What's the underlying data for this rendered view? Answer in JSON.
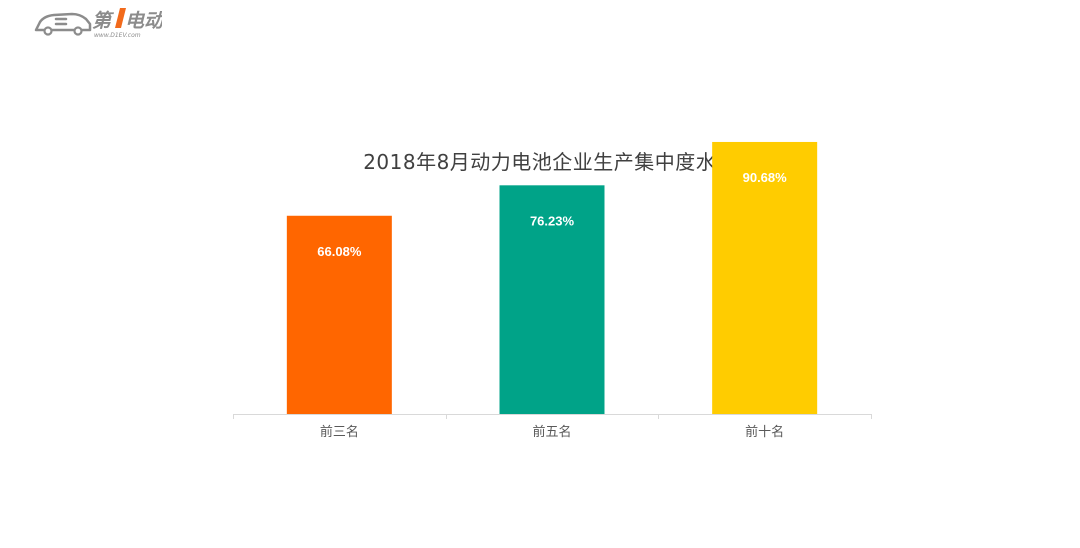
{
  "logo": {
    "text": "第1电动",
    "url_text": "www.D1EV.com",
    "colors": {
      "gray": "#8c8c8c",
      "accent": "#f26a1b"
    }
  },
  "chart_data": {
    "type": "bar",
    "title": "2018年8月动力电池企业生产集中度水平",
    "categories": [
      "前三名",
      "前五名",
      "前十名"
    ],
    "values": [
      66.08,
      76.23,
      90.68
    ],
    "value_labels": [
      "66.08%",
      "76.23%",
      "90.68%"
    ],
    "colors": [
      "#ff6600",
      "#00a388",
      "#ffcc00"
    ],
    "ylim": [
      0,
      100
    ],
    "grid": false,
    "legend": "none",
    "xlabel": "",
    "ylabel": ""
  }
}
